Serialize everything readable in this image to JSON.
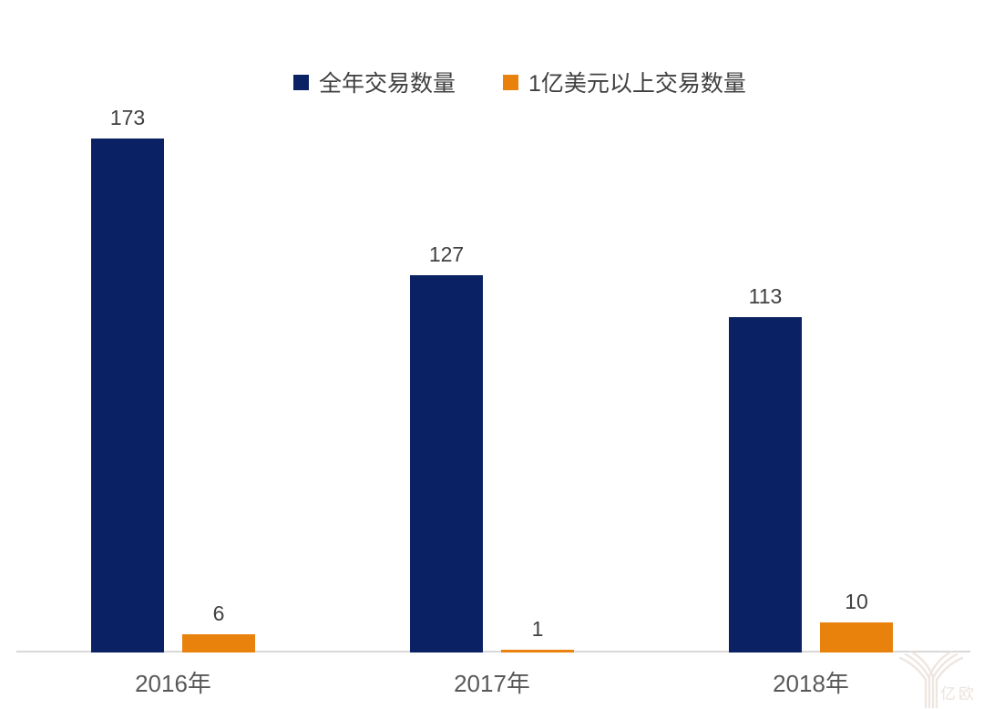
{
  "chart_data": {
    "type": "bar",
    "categories": [
      "2016年",
      "2017年",
      "2018年"
    ],
    "series": [
      {
        "name": "全年交易数量",
        "color": "#0A2263",
        "values": [
          173,
          127,
          113
        ]
      },
      {
        "name": "1亿美元以上交易数量",
        "color": "#E8820D",
        "values": [
          6,
          1,
          10
        ]
      }
    ],
    "title": "",
    "xlabel": "",
    "ylabel": "",
    "ylim": [
      0,
      173
    ],
    "grid": false,
    "legend_position": "top-center",
    "data_labels": true
  },
  "watermark": {
    "text": "亿欧"
  },
  "colors": {
    "background": "#FFFFFF",
    "axis_line": "#D9D9D9",
    "value_label_text": "#404040",
    "category_label_text": "#595959",
    "series_navy": "#0A2263",
    "series_orange": "#E8820D",
    "watermark": "#EAE2DC"
  }
}
